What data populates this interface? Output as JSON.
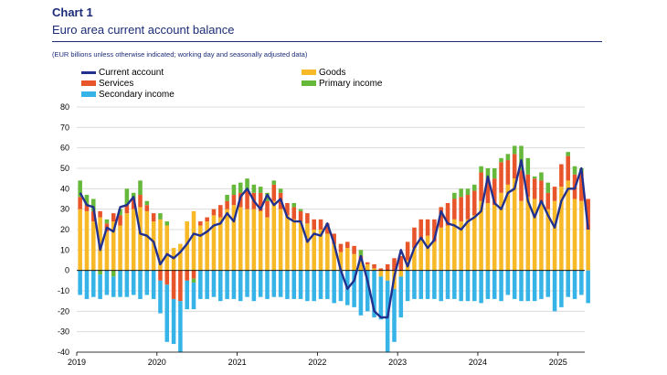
{
  "header": {
    "chart_label": "Chart 1",
    "title": "Euro area current account balance",
    "subtitle": "(EUR billions unless otherwise indicated; working day and seasonally adjusted data)"
  },
  "colors": {
    "current_account": "#22308e",
    "goods": "#f7b928",
    "services": "#e8552a",
    "primary_income": "#65b83a",
    "secondary_income": "#36b4e8",
    "grid": "#dcdcdc"
  },
  "legend": {
    "current_account": "Current account",
    "goods": "Goods",
    "services": "Services",
    "primary_income": "Primary income",
    "secondary_income": "Secondary income"
  },
  "chart_data": {
    "type": "bar",
    "stacked": true,
    "grid": "horizontal",
    "ylim": [
      -40,
      80
    ],
    "yticks": [
      80,
      70,
      60,
      50,
      40,
      30,
      20,
      10,
      0,
      -10,
      -20,
      -30,
      -40
    ],
    "xtick_labels": [
      "2019",
      "2020",
      "2021",
      "2022",
      "2023",
      "2024",
      "2025"
    ],
    "frequency": "monthly",
    "start_period": "2019-01",
    "end_period": "2025-04",
    "series": [
      {
        "name": "Goods",
        "type": "bar",
        "values": [
          30,
          29,
          24,
          26,
          19,
          24,
          22,
          28,
          30,
          31,
          29,
          24,
          25,
          22,
          11,
          13,
          24,
          29,
          22,
          24,
          27,
          26,
          30,
          32,
          31,
          30,
          30,
          29,
          26,
          34,
          30,
          27,
          25,
          24,
          23,
          20,
          20,
          18,
          13,
          9,
          11,
          8,
          5,
          3,
          1,
          -3,
          -5,
          -9,
          -3,
          5,
          11,
          15,
          17,
          14,
          21,
          22,
          25,
          24,
          25,
          27,
          34,
          33,
          32,
          38,
          42,
          45,
          34,
          36,
          35,
          33,
          30,
          34,
          41,
          44,
          35,
          34,
          20
        ]
      },
      {
        "name": "Services",
        "type": "bar",
        "values": [
          6,
          3,
          5,
          3,
          4,
          4,
          5,
          4,
          5,
          6,
          3,
          4,
          -5,
          -7,
          -14,
          -15,
          -5,
          -4,
          2,
          2,
          3,
          6,
          4,
          5,
          7,
          9,
          8,
          9,
          8,
          8,
          8,
          6,
          6,
          5,
          5,
          5,
          5,
          5,
          5,
          4,
          3,
          4,
          2,
          1,
          2,
          1,
          3,
          6,
          7,
          9,
          10,
          10,
          8,
          11,
          10,
          11,
          10,
          12,
          12,
          12,
          14,
          12,
          13,
          15,
          12,
          12,
          15,
          11,
          10,
          11,
          8,
          7,
          11,
          12,
          12,
          14,
          15
        ]
      },
      {
        "name": "Primary income",
        "type": "bar",
        "values": [
          8,
          5,
          6,
          -2,
          2,
          -3,
          3,
          8,
          3,
          7,
          2,
          0,
          3,
          2,
          0,
          0,
          0,
          -2,
          0,
          0,
          0,
          0,
          3,
          5,
          5,
          6,
          4,
          3,
          4,
          2,
          2,
          0,
          2,
          1,
          0,
          0,
          0,
          0,
          0,
          0,
          0,
          0,
          3,
          0,
          0,
          0,
          0,
          0,
          0,
          0,
          0,
          0,
          0,
          0,
          0,
          0,
          3,
          4,
          3,
          3,
          3,
          5,
          5,
          2,
          3,
          4,
          12,
          8,
          1,
          4,
          5,
          0,
          0,
          2,
          4,
          2,
          0
        ]
      },
      {
        "name": "Secondary income",
        "type": "bar",
        "values": [
          -12,
          -14,
          -13,
          -12,
          -12,
          -10,
          -13,
          -13,
          -12,
          -14,
          -12,
          -14,
          -16,
          -28,
          -22,
          -25,
          -14,
          -13,
          -14,
          -14,
          -13,
          -15,
          -14,
          -14,
          -15,
          -13,
          -15,
          -13,
          -14,
          -13,
          -13,
          -14,
          -14,
          -14,
          -15,
          -15,
          -14,
          -14,
          -16,
          -15,
          -17,
          -18,
          -22,
          -20,
          -23,
          -21,
          -35,
          -26,
          -20,
          -15,
          -14,
          -14,
          -14,
          -14,
          -15,
          -14,
          -14,
          -15,
          -15,
          -15,
          -16,
          -14,
          -14,
          -15,
          -12,
          -14,
          -15,
          -15,
          -15,
          -14,
          -13,
          -20,
          -18,
          -13,
          -14,
          -12,
          -16
        ]
      },
      {
        "name": "Current account",
        "type": "line",
        "values": [
          38,
          32,
          31,
          10,
          21,
          19,
          31,
          32,
          36,
          18,
          17,
          14,
          3,
          8,
          6,
          9,
          13,
          18,
          17,
          19,
          22,
          23,
          28,
          24,
          36,
          40,
          34,
          30,
          37,
          32,
          35,
          26,
          24,
          24,
          14,
          18,
          17,
          23,
          13,
          0,
          -9,
          -5,
          7,
          -5,
          -20,
          -23,
          -23,
          -3,
          10,
          2,
          11,
          16,
          11,
          15,
          29,
          23,
          22,
          20,
          24,
          26,
          29,
          46,
          33,
          30,
          38,
          40,
          54,
          34,
          26,
          34,
          27,
          21,
          34,
          40,
          40,
          50,
          20
        ]
      }
    ]
  }
}
